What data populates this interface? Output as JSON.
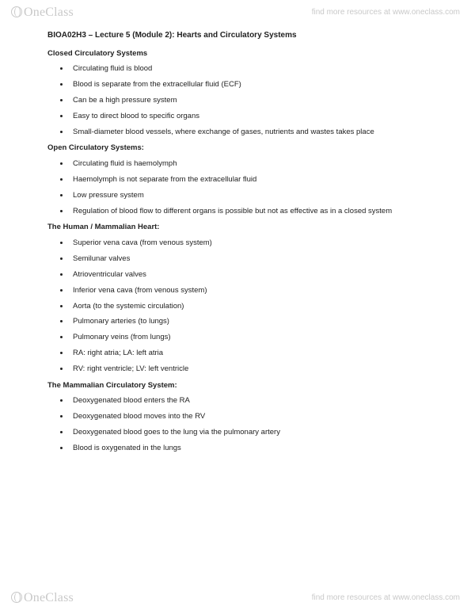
{
  "brand": {
    "name_part1": "One",
    "name_part2": "Class",
    "tagline": "find more resources at www.oneclass.com"
  },
  "doc": {
    "title": "BIOA02H3 – Lecture 5 (Module 2): Hearts and Circulatory Systems",
    "sections": [
      {
        "heading": "Closed Circulatory Systems",
        "items": [
          "Circulating fluid is blood",
          "Blood is separate from the extracellular fluid (ECF)",
          "Can be a high pressure system",
          "Easy to direct blood to specific organs",
          "Small-diameter blood vessels, where exchange of gases, nutrients and wastes takes place"
        ]
      },
      {
        "heading": "Open Circulatory Systems:",
        "items": [
          "Circulating fluid is haemolymph",
          "Haemolymph is not separate from the extracellular fluid",
          "Low pressure system",
          "Regulation of blood flow to different organs is possible but not as effective as in a closed system"
        ]
      },
      {
        "heading": "The Human / Mammalian Heart:",
        "items": [
          "Superior vena cava (from venous system)",
          "Semilunar valves",
          "Atrioventricular valves",
          "Inferior vena cava (from venous system)",
          "Aorta (to the systemic circulation)",
          "Pulmonary arteries (to lungs)",
          "Pulmonary veins (from lungs)",
          "RA: right atria; LA: left atria",
          "RV: right ventricle; LV: left ventricle"
        ]
      },
      {
        "heading": "The Mammalian Circulatory System:",
        "items": [
          "Deoxygenated blood enters the RA",
          "Deoxygenated blood moves into the RV",
          "Deoxygenated blood goes to the lung via the pulmonary artery",
          "Blood is oxygenated in the lungs"
        ]
      }
    ]
  },
  "colors": {
    "text": "#222222",
    "watermark": "#c9c9c9",
    "background": "#ffffff"
  },
  "typography": {
    "body_fontsize_pt": 9.5,
    "title_fontsize_pt": 10,
    "brand_fontsize_pt": 16,
    "tagline_fontsize_pt": 10,
    "body_family": "Arial",
    "brand_family": "Georgia"
  }
}
